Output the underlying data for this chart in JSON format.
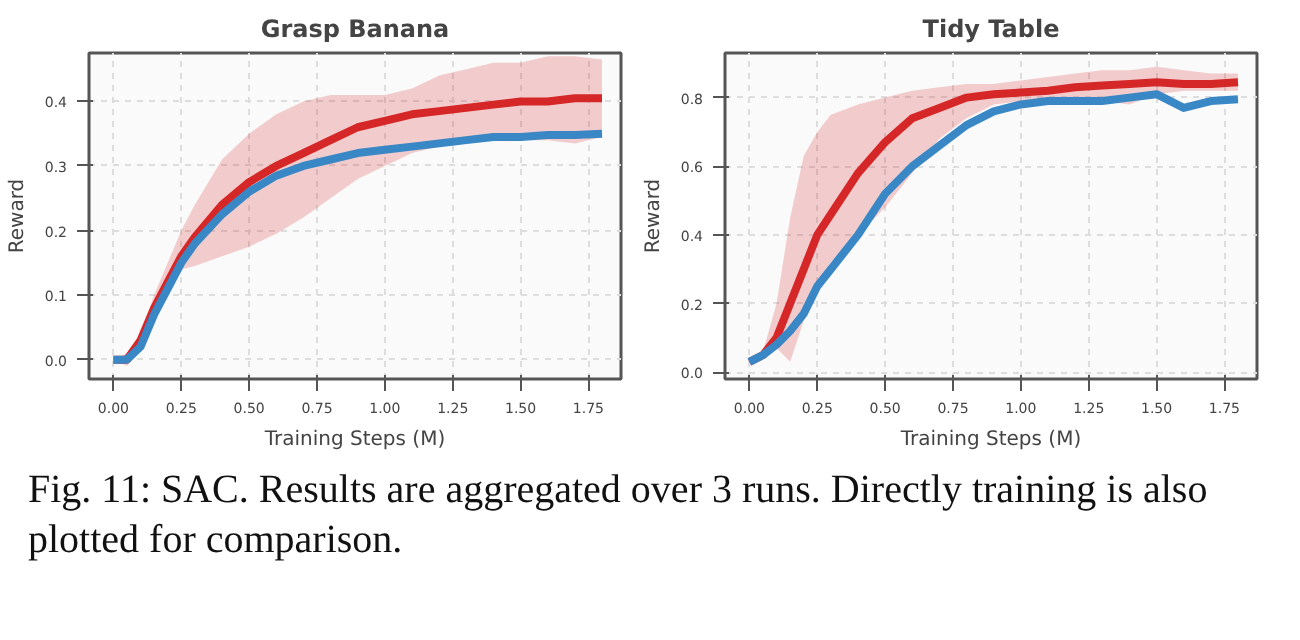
{
  "chart_data": [
    {
      "type": "line",
      "title": "Grasp Banana",
      "xlabel": "Training Steps (M)",
      "ylabel": "Reward",
      "x": [
        0,
        0.05,
        0.1,
        0.15,
        0.2,
        0.25,
        0.3,
        0.4,
        0.5,
        0.6,
        0.7,
        0.8,
        0.9,
        1.0,
        1.1,
        1.2,
        1.3,
        1.4,
        1.5,
        1.6,
        1.7,
        1.8
      ],
      "series": [
        {
          "color": "#d62728",
          "values": [
            0,
            0,
            0.03,
            0.08,
            0.12,
            0.16,
            0.19,
            0.24,
            0.275,
            0.3,
            0.32,
            0.34,
            0.36,
            0.37,
            0.38,
            0.385,
            0.39,
            0.395,
            0.4,
            0.4,
            0.405,
            0.405
          ],
          "lower": [
            0,
            -0.01,
            0.02,
            0.07,
            0.11,
            0.14,
            0.145,
            0.16,
            0.175,
            0.195,
            0.22,
            0.25,
            0.28,
            0.3,
            0.32,
            0.33,
            0.335,
            0.34,
            0.34,
            0.34,
            0.335,
            0.345
          ],
          "upper": [
            0,
            0.01,
            0.04,
            0.1,
            0.15,
            0.2,
            0.24,
            0.31,
            0.35,
            0.38,
            0.4,
            0.41,
            0.41,
            0.41,
            0.42,
            0.44,
            0.45,
            0.46,
            0.46,
            0.47,
            0.47,
            0.465
          ]
        },
        {
          "color": "#3a87c6",
          "values": [
            0,
            0,
            0.02,
            0.07,
            0.11,
            0.15,
            0.18,
            0.225,
            0.26,
            0.285,
            0.3,
            0.31,
            0.32,
            0.325,
            0.33,
            0.335,
            0.34,
            0.345,
            0.345,
            0.348,
            0.348,
            0.35
          ]
        }
      ],
      "xlim": [
        -0.09,
        1.87
      ],
      "ylim": [
        -0.03,
        0.475
      ],
      "xticks": [
        {
          "value": 0,
          "label": "0.00"
        },
        0.25,
        {
          "value": 0.5,
          "label": "0.50"
        },
        0.75,
        {
          "value": 1,
          "label": "1.00"
        },
        1.25,
        {
          "value": 1.5,
          "label": "1.50"
        },
        1.75
      ],
      "yticks": [
        {
          "value": 0,
          "label": "0.0"
        },
        0.1,
        0.2,
        0.3,
        0.4
      ],
      "grid": true,
      "annotations": [
        "Fig. 11: SAC. Results are aggregated over 3 runs. Directly training is also plotted for comparison."
      ]
    },
    {
      "type": "line",
      "title": "Tidy Table",
      "xlabel": "Training Steps (M)",
      "ylabel": "Reward",
      "x": [
        0,
        0.05,
        0.1,
        0.15,
        0.2,
        0.25,
        0.3,
        0.4,
        0.5,
        0.6,
        0.7,
        0.8,
        0.9,
        1.0,
        1.1,
        1.2,
        1.3,
        1.4,
        1.5,
        1.6,
        1.7,
        1.8
      ],
      "series": [
        {
          "color": "#d62728",
          "values": [
            0.03,
            0.05,
            0.1,
            0.2,
            0.3,
            0.4,
            0.46,
            0.58,
            0.67,
            0.74,
            0.77,
            0.8,
            0.81,
            0.815,
            0.82,
            0.83,
            0.835,
            0.84,
            0.845,
            0.84,
            0.84,
            0.845
          ],
          "lower": [
            0.03,
            0.04,
            0.07,
            0.03,
            0.15,
            0.25,
            0.32,
            0.4,
            0.48,
            0.58,
            0.68,
            0.74,
            0.78,
            0.79,
            0.8,
            0.8,
            0.79,
            0.78,
            0.81,
            0.82,
            0.82,
            0.82
          ],
          "upper": [
            0.03,
            0.06,
            0.2,
            0.45,
            0.63,
            0.7,
            0.75,
            0.78,
            0.8,
            0.82,
            0.83,
            0.84,
            0.84,
            0.85,
            0.86,
            0.87,
            0.88,
            0.88,
            0.89,
            0.88,
            0.87,
            0.87
          ]
        },
        {
          "color": "#3a87c6",
          "values": [
            0.03,
            0.05,
            0.08,
            0.12,
            0.17,
            0.25,
            0.3,
            0.4,
            0.52,
            0.6,
            0.66,
            0.72,
            0.76,
            0.78,
            0.79,
            0.79,
            0.79,
            0.8,
            0.81,
            0.77,
            0.79,
            0.795
          ]
        }
      ],
      "xlim": [
        -0.09,
        1.87
      ],
      "ylim": [
        -0.02,
        0.93
      ],
      "xticks": [
        {
          "value": 0,
          "label": "0.00"
        },
        0.25,
        {
          "value": 0.5,
          "label": "0.50"
        },
        0.75,
        {
          "value": 1,
          "label": "1.00"
        },
        1.25,
        {
          "value": 1.5,
          "label": "1.50"
        },
        1.75
      ],
      "yticks": [
        {
          "value": 0,
          "label": "0.0"
        },
        0.2,
        0.4,
        0.6,
        0.8
      ],
      "grid": true
    }
  ]
}
